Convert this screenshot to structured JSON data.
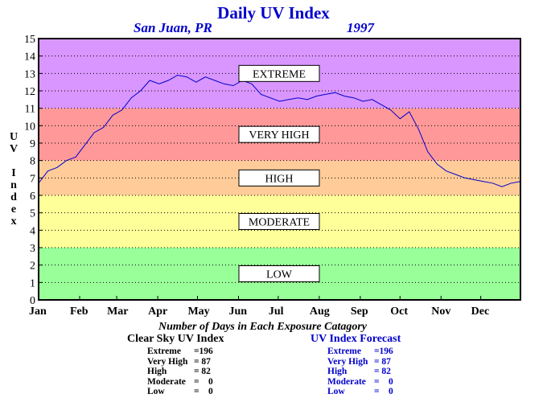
{
  "title": "Daily UV Index",
  "location": "San Juan, PR",
  "year": "1997",
  "subtitle": "Number of Days in Each Exposure Catagory",
  "colors": {
    "title": "#0000cc",
    "series": "#0000cc",
    "band_extreme": "#d996ff",
    "band_very_high": "#ff9999",
    "band_high": "#ffcc99",
    "band_moderate": "#ffff99",
    "band_low": "#99ff99"
  },
  "clear_sky": {
    "header": "Clear Sky UV Index",
    "rows": [
      {
        "label": "Extreme",
        "value": "=196"
      },
      {
        "label": "Very High",
        "value": "= 87"
      },
      {
        "label": "High",
        "value": "= 82"
      },
      {
        "label": "Moderate",
        "value": "=    0"
      },
      {
        "label": "Low",
        "value": "=    0"
      }
    ]
  },
  "forecast": {
    "header": "UV Index Forecast",
    "rows": [
      {
        "label": "Extreme",
        "value": "=196"
      },
      {
        "label": "Very High",
        "value": "= 87"
      },
      {
        "label": "High",
        "value": "= 82"
      },
      {
        "label": "Moderate",
        "value": "=    0"
      },
      {
        "label": "Low",
        "value": "=    0"
      }
    ]
  },
  "chart_data": {
    "type": "line",
    "title": "Daily UV Index",
    "xlabel": "",
    "ylabel": "UV Index",
    "xlim": [
      1,
      365
    ],
    "ylim": [
      0,
      15
    ],
    "y_ticks": [
      0,
      1,
      2,
      3,
      4,
      5,
      6,
      7,
      8,
      9,
      10,
      11,
      12,
      13,
      14,
      15
    ],
    "x_tick_labels": [
      "Jan",
      "Feb",
      "Mar",
      "Apr",
      "May",
      "Jun",
      "Jul",
      "Aug",
      "Sep",
      "Oct",
      "Nov",
      "Dec"
    ],
    "x_tick_days": [
      1,
      32,
      60,
      91,
      121,
      152,
      182,
      213,
      244,
      274,
      305,
      335
    ],
    "grid": "horizontal dotted",
    "bands": [
      {
        "label": "LOW",
        "from": 0,
        "to": 3
      },
      {
        "label": "MODERATE",
        "from": 3,
        "to": 6
      },
      {
        "label": "HIGH",
        "from": 6,
        "to": 8
      },
      {
        "label": "VERY HIGH",
        "from": 8,
        "to": 11
      },
      {
        "label": "EXTREME",
        "from": 11,
        "to": 15
      }
    ],
    "series": [
      {
        "x": [
          1,
          8,
          15,
          22,
          29,
          36,
          43,
          50,
          57,
          64,
          71,
          78,
          85,
          92,
          99,
          106,
          113,
          120,
          127,
          134,
          141,
          148,
          155,
          162,
          169,
          176,
          183,
          190,
          197,
          204,
          211,
          218,
          225,
          232,
          239,
          246,
          253,
          260,
          267,
          274,
          281,
          288,
          295,
          302,
          309,
          316,
          323,
          330,
          337,
          344,
          351,
          358,
          365
        ],
        "values": [
          6.7,
          7.4,
          7.6,
          8.0,
          8.2,
          8.9,
          9.6,
          9.9,
          10.6,
          10.9,
          11.6,
          12.0,
          12.6,
          12.4,
          12.6,
          12.9,
          12.8,
          12.5,
          12.8,
          12.6,
          12.4,
          12.3,
          12.6,
          12.4,
          11.8,
          11.6,
          11.4,
          11.5,
          11.6,
          11.5,
          11.7,
          11.8,
          11.9,
          11.7,
          11.6,
          11.4,
          11.5,
          11.2,
          10.9,
          10.4,
          10.8,
          9.8,
          8.5,
          7.8,
          7.4,
          7.2,
          7.0,
          6.9,
          6.8,
          6.7,
          6.5,
          6.7,
          6.8
        ]
      }
    ]
  }
}
